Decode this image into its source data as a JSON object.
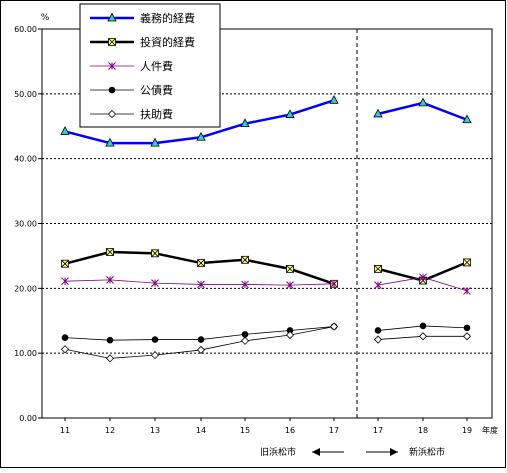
{
  "chart_data": {
    "type": "line",
    "y_unit": "%",
    "x_unit": "年度",
    "ylim": [
      0,
      60
    ],
    "y_ticks": [
      "0.00",
      "10.00",
      "20.00",
      "30.00",
      "40.00",
      "50.00",
      "60.00"
    ],
    "categories": [
      "11",
      "12",
      "13",
      "14",
      "15",
      "16",
      "17",
      "17",
      "18",
      "19"
    ],
    "groups": [
      {
        "label": "旧浜松市",
        "categories": [
          "11",
          "12",
          "13",
          "14",
          "15",
          "16",
          "17"
        ]
      },
      {
        "label": "新浜松市",
        "categories": [
          "17",
          "18",
          "19"
        ]
      }
    ],
    "grid": true,
    "legend_position": "top-left",
    "series": [
      {
        "name": "義務的経費",
        "color": "#0000ff",
        "marker": "triangle",
        "values": [
          44.2,
          42.4,
          42.4,
          43.3,
          45.4,
          46.8,
          49.0,
          46.9,
          48.6,
          46.0
        ]
      },
      {
        "name": "投資的経費",
        "color": "#000000",
        "marker": "square-x",
        "values": [
          23.8,
          25.6,
          25.4,
          23.9,
          24.4,
          23.0,
          20.7,
          23.0,
          21.2,
          24.0
        ]
      },
      {
        "name": "人件費",
        "color": "#800080",
        "marker": "asterisk",
        "values": [
          21.1,
          21.3,
          20.8,
          20.6,
          20.6,
          20.5,
          20.7,
          20.5,
          21.7,
          19.6
        ]
      },
      {
        "name": "公債費",
        "color": "#000000",
        "marker": "circle",
        "values": [
          12.4,
          12.0,
          12.1,
          12.1,
          12.9,
          13.5,
          14.1,
          13.5,
          14.2,
          13.9
        ]
      },
      {
        "name": "扶助費",
        "color": "#000000",
        "marker": "diamond",
        "values": [
          10.6,
          9.2,
          9.7,
          10.5,
          11.9,
          12.8,
          14.1,
          12.1,
          12.6,
          12.6
        ]
      }
    ]
  }
}
